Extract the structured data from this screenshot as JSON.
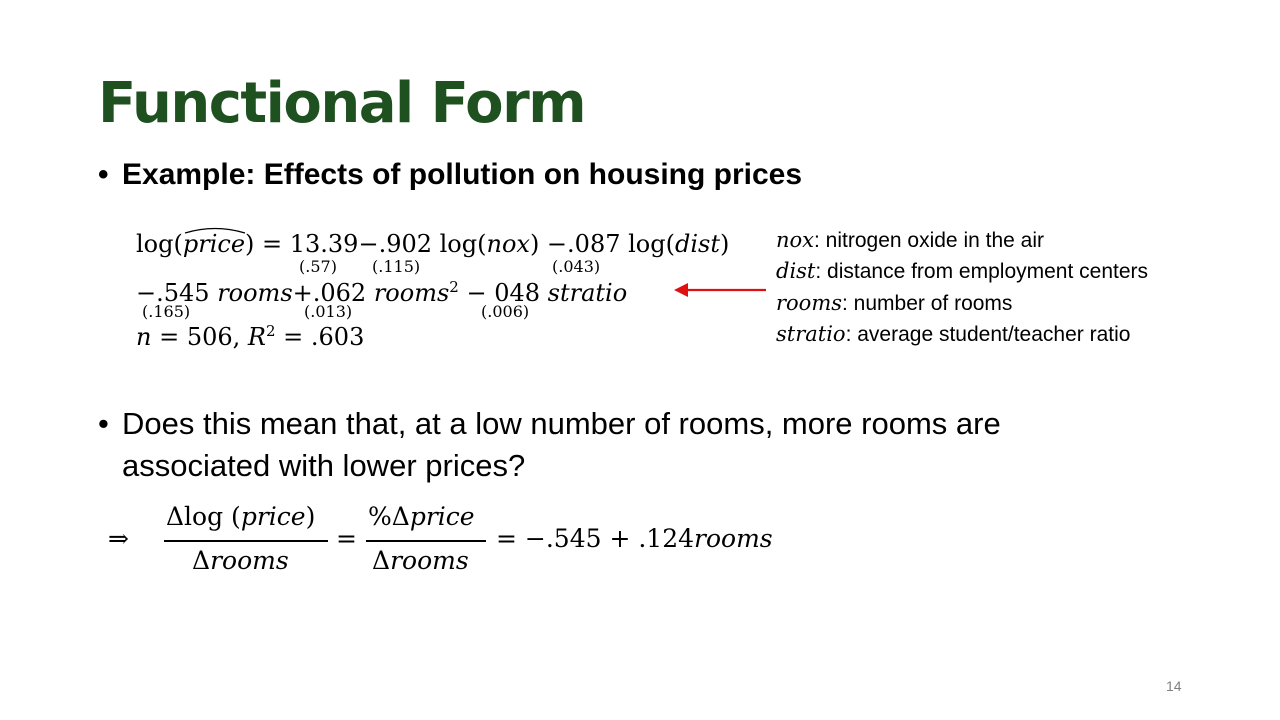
{
  "slide": {
    "title": "Functional Form",
    "bullet_glyph": "•",
    "bullet1": "Example: Effects of pollution on housing prices",
    "bullet2": "Does this mean that, at a low number of rooms, more rooms are associated with lower prices?",
    "page_number": "14"
  },
  "equation": {
    "line1": {
      "lhs": "log(",
      "lhs_var": "price",
      "lhs_close": ") = 13.39−.902 log(",
      "nox": "nox",
      "mid": ") −.087 log(",
      "dist": "dist",
      "close": ")"
    },
    "line1_se": [
      "(.57)",
      "(.115)",
      "(.043)"
    ],
    "line2": {
      "a": "−.545 ",
      "rooms1": "rooms",
      "b": "+.062 ",
      "rooms2": "rooms",
      "sq": "2",
      "c": " − 048 ",
      "stratio": "stratio"
    },
    "line2_se": [
      "(.165)",
      "(.013)",
      "(.006)"
    ],
    "line3": {
      "n": "n",
      "n_val": " = 506, ",
      "r": "R",
      "r_sup": "2",
      "r_val": " = .603"
    }
  },
  "arrow_color": "#e01010",
  "definitions": [
    {
      "var": "nox",
      "desc": ": nitrogen oxide in the air"
    },
    {
      "var": "dist",
      "desc": ": distance from employment centers"
    },
    {
      "var": "rooms",
      "desc": ": number of rooms"
    },
    {
      "var": "stratio",
      "desc": ": average student/teacher ratio"
    }
  ],
  "derivative": {
    "implies": "⇒",
    "frac1_num": "Δlog (price)",
    "frac1_den": "Δrooms",
    "equals1": "=",
    "frac2_num": "%Δprice",
    "frac2_den": "Δrooms",
    "rhs": "= −.545 + .124rooms"
  }
}
